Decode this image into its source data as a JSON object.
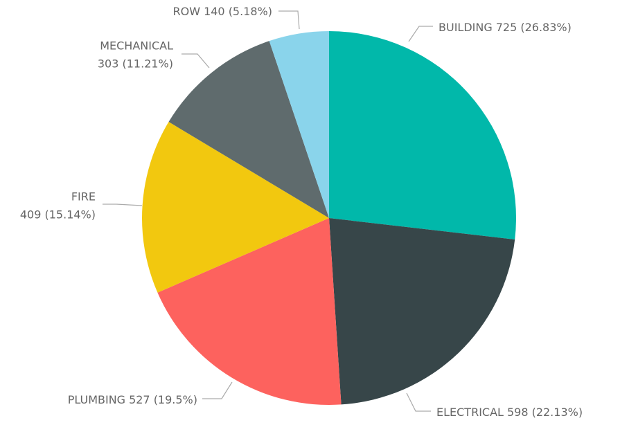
{
  "chart_data": {
    "type": "pie",
    "categories": [
      "BUILDING",
      "ELECTRICAL",
      "PLUMBING",
      "FIRE",
      "MECHANICAL",
      "ROW"
    ],
    "values": [
      725,
      598,
      527,
      409,
      303,
      140
    ],
    "value_labels": [
      "725 (26.83%)",
      "598 (22.13%)",
      "527 (19.5%)",
      "409 (15.14%)",
      "303 (11.21%)",
      "140 (5.18%)"
    ],
    "colors": [
      "#01b8aa",
      "#374649",
      "#fd625e",
      "#f2c80f",
      "#5f6b6d",
      "#8ad4eb"
    ]
  }
}
